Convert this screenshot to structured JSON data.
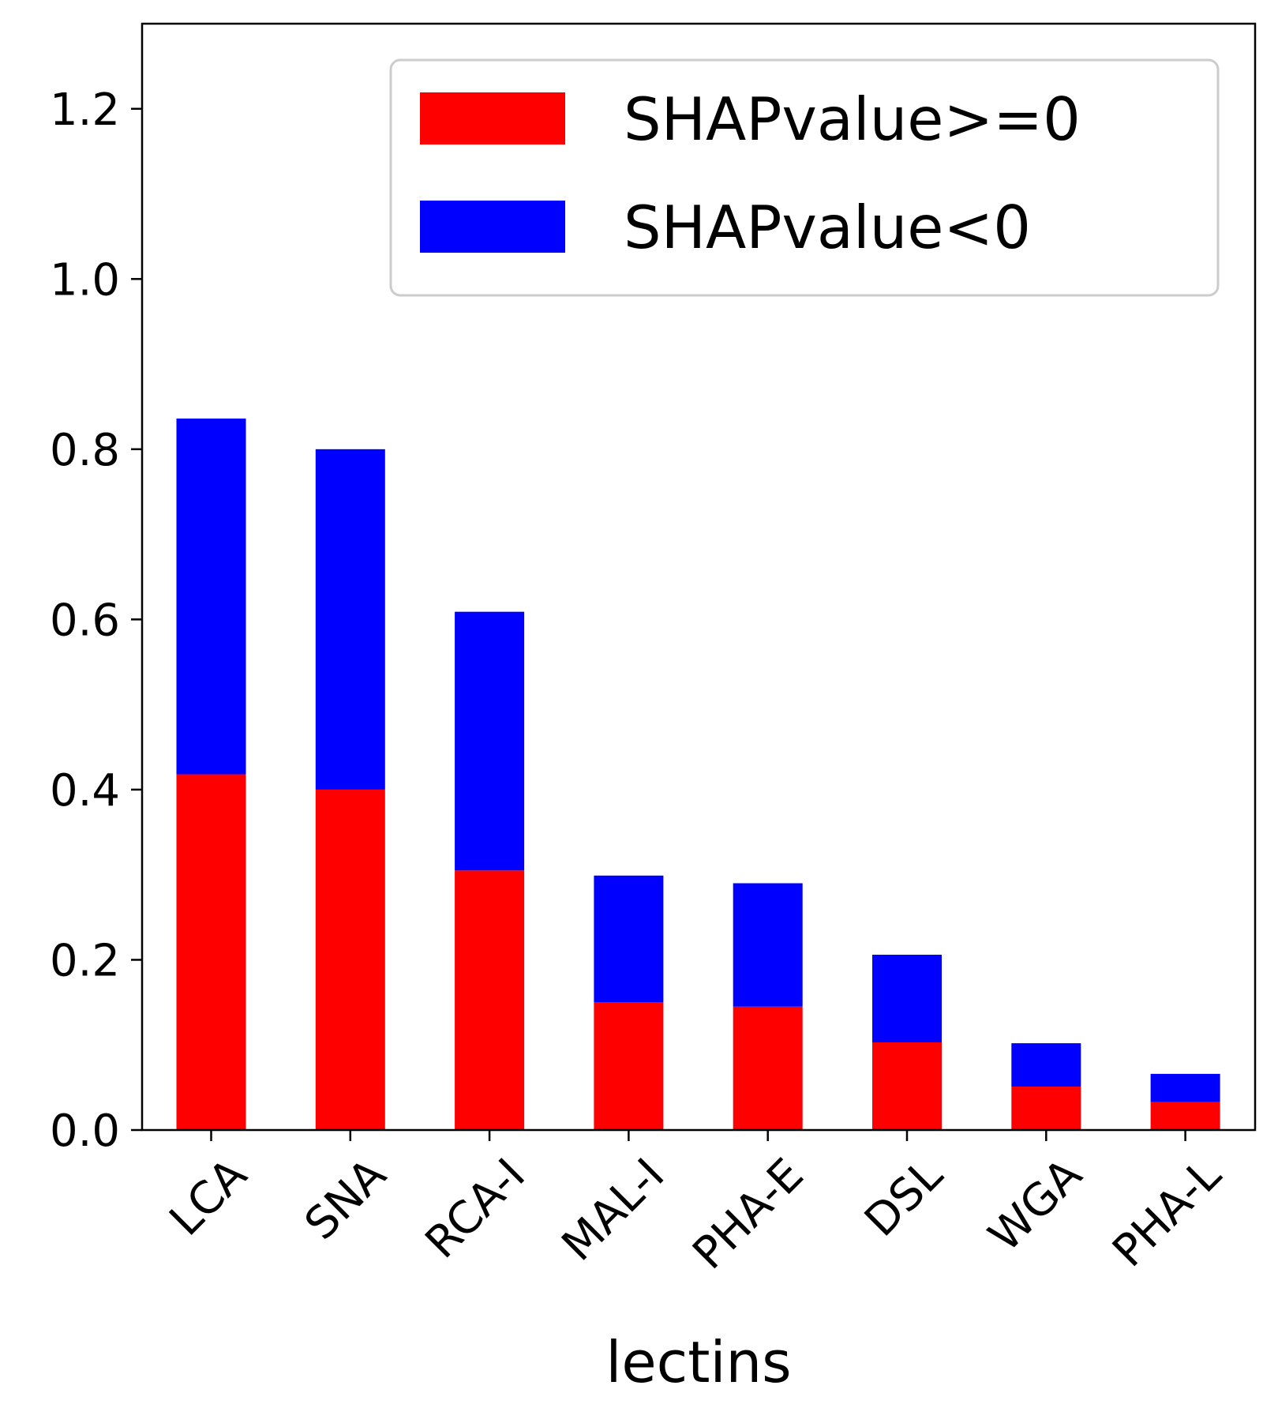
{
  "chart_data": {
    "type": "bar",
    "stacked": true,
    "categories": [
      "LCA",
      "SNA",
      "RCA-I",
      "MAL-I",
      "PHA-E",
      "DSL",
      "WGA",
      "PHA-L"
    ],
    "series": [
      {
        "name": "SHAPvalue>=0",
        "color": "#ff0000",
        "values": [
          0.418,
          0.4,
          0.305,
          0.15,
          0.145,
          0.103,
          0.051,
          0.033
        ]
      },
      {
        "name": "SHAPvalue<0",
        "color": "#0000ff",
        "values": [
          0.418,
          0.4,
          0.304,
          0.149,
          0.145,
          0.103,
          0.051,
          0.033
        ]
      }
    ],
    "xlabel": "lectins",
    "ylabel": "",
    "ylim": [
      0,
      1.3
    ],
    "yticks": [
      "0.0",
      "0.2",
      "0.4",
      "0.6",
      "0.8",
      "1.0",
      "1.2"
    ],
    "grid": false,
    "legend": "top-right"
  }
}
